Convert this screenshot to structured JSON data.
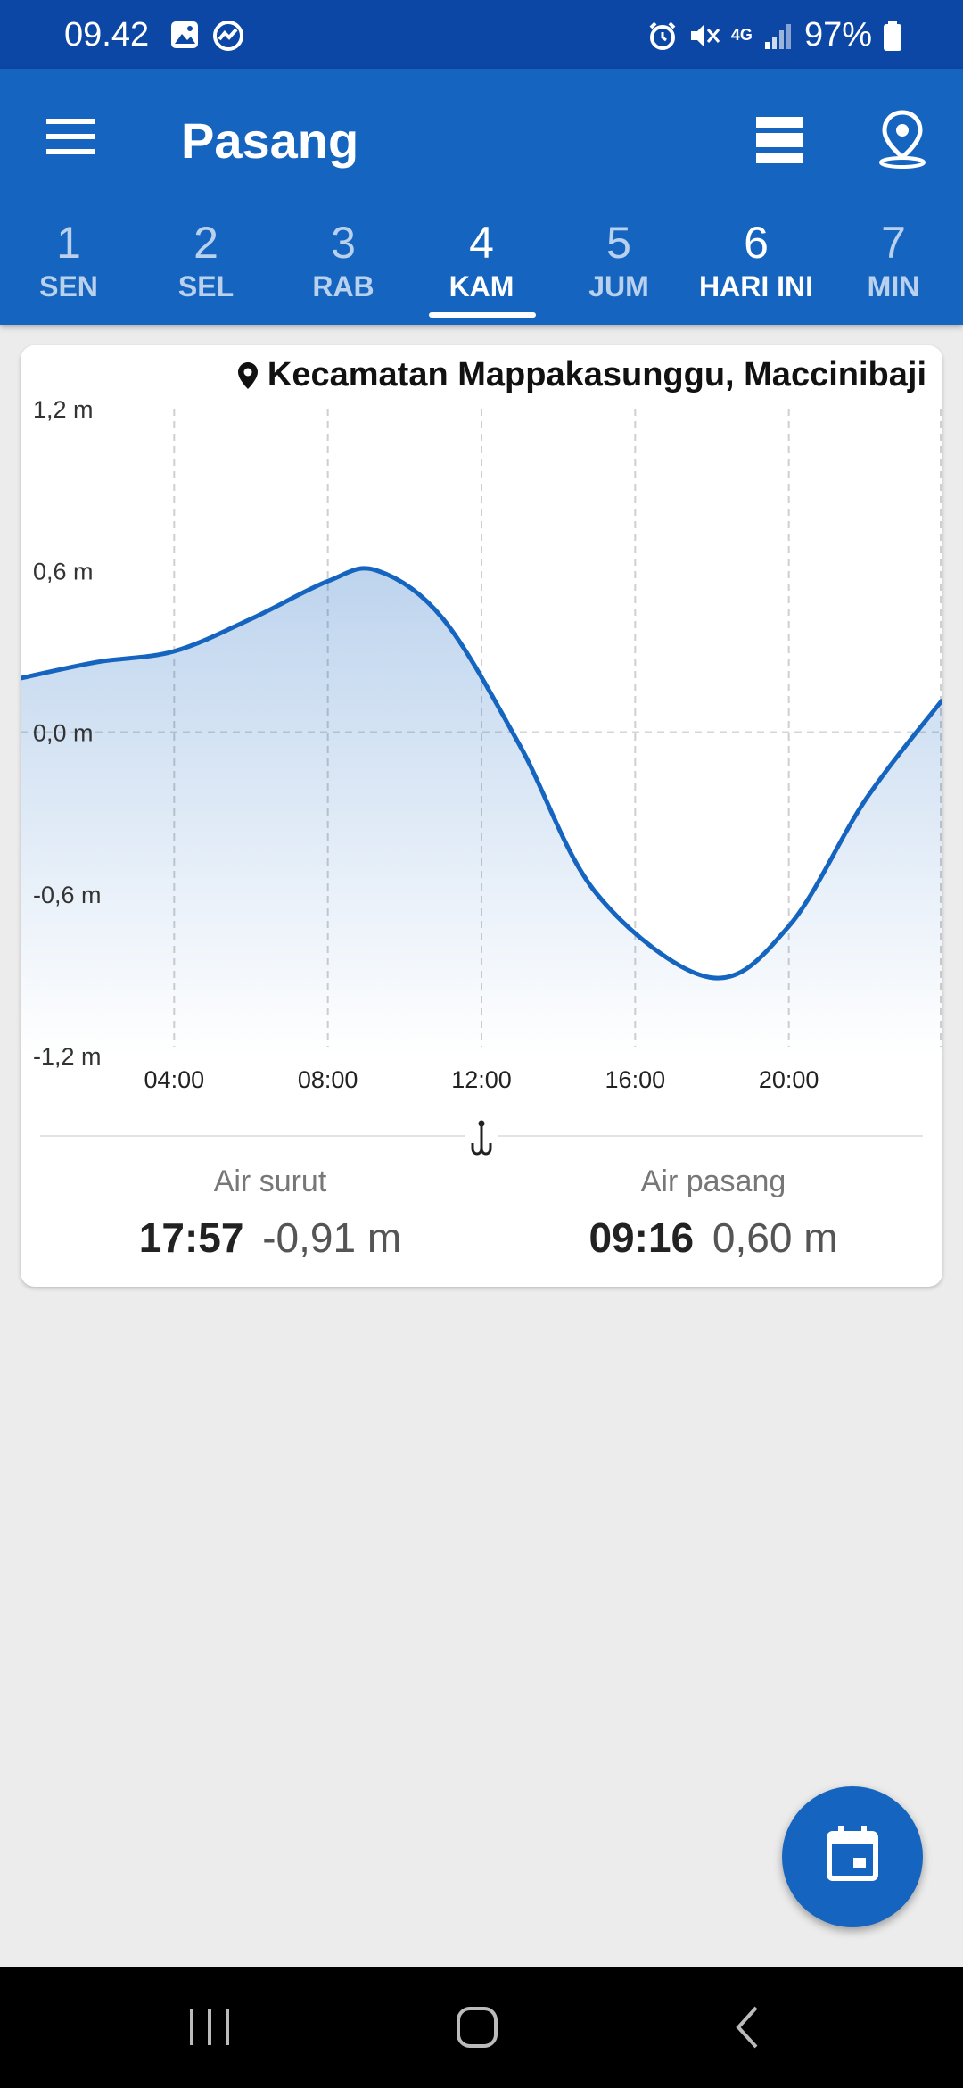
{
  "status_bar": {
    "time": "09.42",
    "network": "4G",
    "battery": "97%"
  },
  "app_bar": {
    "title": "Pasang",
    "menu_icon": "hamburger-menu-icon",
    "list_icon": "list-view-icon",
    "location_icon": "map-pin-icon"
  },
  "tabs": [
    {
      "num": "1",
      "day": "SEN"
    },
    {
      "num": "2",
      "day": "SEL"
    },
    {
      "num": "3",
      "day": "RAB"
    },
    {
      "num": "4",
      "day": "KAM"
    },
    {
      "num": "5",
      "day": "JUM"
    },
    {
      "num": "6",
      "day": "HARI INI"
    },
    {
      "num": "7",
      "day": "MIN"
    }
  ],
  "selected_tab": "KAM",
  "card": {
    "location": "Kecamatan Mappakasunggu, Maccinibaji",
    "low_tide": {
      "label": "Air surut",
      "time": "17:57",
      "height": "-0,91 m"
    },
    "high_tide": {
      "label": "Air pasang",
      "time": "09:16",
      "height": "0,60 m"
    }
  },
  "chart_data": {
    "type": "area",
    "x_unit": "hour",
    "x": [
      0,
      2,
      4,
      6,
      8,
      9.27,
      11,
      13,
      15,
      17.95,
      20,
      22,
      24
    ],
    "y": [
      0.2,
      0.26,
      0.3,
      0.42,
      0.56,
      0.6,
      0.42,
      -0.05,
      -0.6,
      -0.91,
      -0.72,
      -0.25,
      0.12
    ],
    "ylim": [
      -1.2,
      1.2
    ],
    "xlim": [
      0,
      24
    ],
    "y_ticks": [
      "1,2 m",
      "0,6 m",
      "0,0 m",
      "-0,6 m",
      "-1,2 m"
    ],
    "y_tick_values": [
      1.2,
      0.6,
      0,
      -0.6,
      -1.2
    ],
    "x_ticks": [
      "04:00",
      "08:00",
      "12:00",
      "16:00",
      "20:00"
    ],
    "x_tick_values": [
      4,
      8,
      12,
      16,
      20
    ],
    "grid": "dashed",
    "line_color": "#1565c0"
  },
  "colors": {
    "status_bar": "#0c47a6",
    "app_bar": "#1565c0",
    "fab": "#1565c0"
  },
  "fab_icon": "calendar-icon"
}
